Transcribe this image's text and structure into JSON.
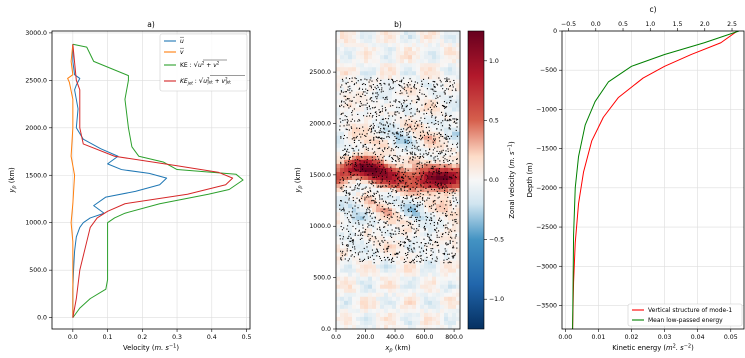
{
  "chart_data": [
    {
      "panel": "a",
      "type": "line",
      "title": "a)",
      "xlabel": "Velocity (m. s⁻¹)",
      "ylabel": "y_p (km)",
      "xlim": [
        -0.06,
        0.51
      ],
      "ylim": [
        -120,
        3020
      ],
      "xticks": [
        "0.0",
        "0.1",
        "0.2",
        "0.3",
        "0.4",
        "0.5"
      ],
      "yticks": [
        "0.0",
        "500.0",
        "1000.0",
        "1500.0",
        "2000.0",
        "2500.0",
        "3000.0"
      ],
      "grid": true,
      "legend_position": "top-right",
      "series": [
        {
          "name": "ū",
          "color": "#1f77b4",
          "x": [
            0.0,
            0.0,
            0.002,
            0.005,
            0.01,
            0.02,
            0.03,
            0.05,
            0.09,
            0.06,
            0.095,
            0.18,
            0.25,
            0.27,
            0.22,
            0.14,
            0.1,
            0.13,
            0.08,
            0.03,
            0.01,
            0.015,
            0.005,
            0.01,
            0.02,
            0.005,
            0.0,
            0.0
          ],
          "y": [
            0,
            300,
            500,
            700,
            850,
            950,
            1000,
            1050,
            1100,
            1180,
            1270,
            1330,
            1400,
            1470,
            1520,
            1560,
            1620,
            1700,
            1780,
            1880,
            2000,
            2200,
            2400,
            2450,
            2520,
            2560,
            2700,
            2880
          ]
        },
        {
          "name": "v̄",
          "color": "#ff7f0e",
          "x": [
            0.0,
            0.0,
            0.0,
            -0.005,
            0.0,
            0.005,
            -0.005,
            0.0,
            0.0,
            -0.01,
            -0.015,
            0.0,
            -0.005,
            0.0
          ],
          "y": [
            0,
            400,
            800,
            1000,
            1200,
            1500,
            1700,
            2000,
            2300,
            2480,
            2520,
            2560,
            2700,
            2880
          ]
        },
        {
          "name": "KE : √(u² + v²)",
          "color": "#2ca02c",
          "x": [
            0.0,
            0.02,
            0.05,
            0.095,
            0.1,
            0.1,
            0.1,
            0.1,
            0.12,
            0.15,
            0.25,
            0.39,
            0.45,
            0.49,
            0.47,
            0.3,
            0.26,
            0.19,
            0.17,
            0.16,
            0.15,
            0.16,
            0.16,
            0.06,
            0.04,
            0.0
          ],
          "y": [
            0,
            100,
            200,
            300,
            400,
            700,
            900,
            1000,
            1050,
            1100,
            1200,
            1300,
            1350,
            1450,
            1510,
            1560,
            1640,
            1700,
            1800,
            2000,
            2300,
            2500,
            2550,
            2700,
            2850,
            2880
          ]
        },
        {
          "name": "KE_jet : √(u_jet² + v_jet²)",
          "color": "#d62728",
          "x": [
            0.0,
            0.01,
            0.02,
            0.04,
            0.05,
            0.07,
            0.1,
            0.15,
            0.33,
            0.44,
            0.46,
            0.42,
            0.3,
            0.12,
            0.03,
            0.02,
            0.02,
            0.01,
            0.0
          ],
          "y": [
            0,
            200,
            500,
            800,
            950,
            1050,
            1120,
            1200,
            1300,
            1400,
            1470,
            1530,
            1600,
            1700,
            1830,
            2000,
            2400,
            2500,
            2880
          ]
        }
      ]
    },
    {
      "panel": "b",
      "type": "heatmap",
      "title": "b)",
      "xlabel": "x_p (km)",
      "ylabel": "y_p (km)",
      "xlim": [
        0,
        840
      ],
      "ylim": [
        0,
        2900
      ],
      "xticks": [
        "0.0",
        "200.0",
        "400.0",
        "600.0",
        "800.0"
      ],
      "yticks": [
        "0.0",
        "500.0",
        "1000.0",
        "1500.0",
        "2000.0",
        "2500.0"
      ],
      "colorbar": {
        "label": "Zonal velocity (m. s⁻¹)",
        "range": [
          -1.25,
          1.25
        ],
        "ticks": [
          "-1.0",
          "-0.5",
          "0.0",
          "0.5",
          "1.0"
        ],
        "colormap": "RdBu_r"
      },
      "jet_center_y": 1500,
      "particle_band_y": [
        650,
        2450
      ],
      "particle_color": "#000000"
    },
    {
      "panel": "c",
      "type": "line",
      "title": "c)",
      "ylabel": "Depth (m)",
      "xlabel": "Kinetic energy (m². s⁻²)",
      "xlim": [
        -0.001,
        0.054
      ],
      "ylim": [
        -3800,
        0
      ],
      "xticks": [
        "0.00",
        "0.01",
        "0.02",
        "0.03",
        "0.04",
        "0.05"
      ],
      "yticks": [
        "-3500",
        "-3000",
        "-2500",
        "-2000",
        "-1500",
        "-1000",
        "-500",
        "0"
      ],
      "top_axis": {
        "lim": [
          -0.62,
          2.72
        ],
        "ticks": [
          "-0.5",
          "0.0",
          "0.5",
          "1.0",
          "1.5",
          "2.0",
          "2.5"
        ]
      },
      "grid": true,
      "legend_position": "bottom-right",
      "series": [
        {
          "name": "Vertical structure of mode-1",
          "color": "#ff0000",
          "x": [
            0.052,
            0.047,
            0.038,
            0.03,
            0.0235,
            0.016,
            0.0115,
            0.008,
            0.0055,
            0.004,
            0.003,
            0.0025,
            0.0022
          ],
          "y": [
            0,
            -150,
            -300,
            -450,
            -600,
            -850,
            -1100,
            -1400,
            -1800,
            -2200,
            -2700,
            -3200,
            -3800
          ]
        },
        {
          "name": "Mean low-passed energy",
          "color": "#008000",
          "x": [
            0.0525,
            0.042,
            0.03,
            0.02,
            0.013,
            0.009,
            0.006,
            0.004,
            0.003,
            0.0025,
            0.0022
          ],
          "y": [
            0,
            -150,
            -300,
            -450,
            -650,
            -900,
            -1200,
            -1600,
            -2000,
            -2600,
            -3800
          ]
        }
      ]
    }
  ]
}
